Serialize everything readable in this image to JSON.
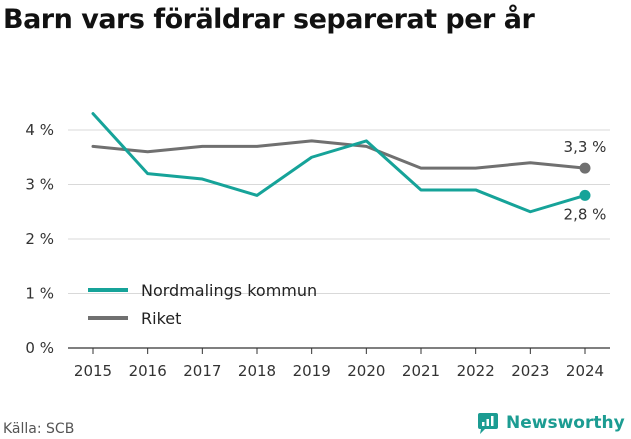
{
  "title": "Barn vars föräldrar separerat per år",
  "source": "Källa: SCB",
  "brand": "Newsworthy",
  "colors": {
    "kommun": "#16a399",
    "riket": "#707070",
    "grid": "#d9d9d9",
    "brand": "#1c9c92"
  },
  "chart_data": {
    "type": "line",
    "x": [
      2015,
      2016,
      2017,
      2018,
      2019,
      2020,
      2021,
      2022,
      2023,
      2024
    ],
    "ylim": [
      0,
      4
    ],
    "yticks": [
      0,
      1,
      2,
      3,
      4
    ],
    "ytick_labels": [
      "0 %",
      "1 %",
      "2 %",
      "3 %",
      "4 %"
    ],
    "xtick_labels": [
      "2015",
      "2016",
      "2017",
      "2018",
      "2019",
      "2020",
      "2021",
      "2022",
      "2023",
      "2024"
    ],
    "series": [
      {
        "name": "Nordmalings kommun",
        "values": [
          4.3,
          3.2,
          3.1,
          2.8,
          3.5,
          3.8,
          2.9,
          2.9,
          2.5,
          2.8
        ],
        "end_label": "2,8 %"
      },
      {
        "name": "Riket",
        "values": [
          3.7,
          3.6,
          3.7,
          3.7,
          3.8,
          3.7,
          3.3,
          3.3,
          3.4,
          3.3
        ],
        "end_label": "3,3 %"
      }
    ],
    "legend_position": "bottom-left",
    "grid": true
  }
}
